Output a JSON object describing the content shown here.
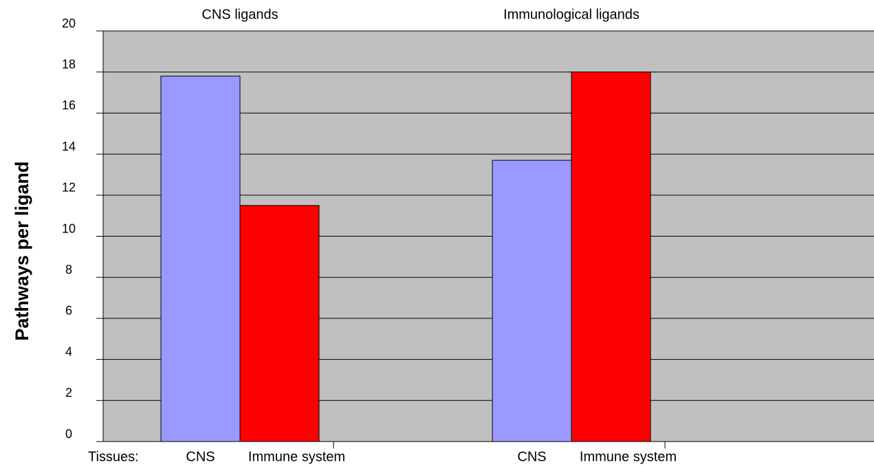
{
  "chart_data": {
    "type": "bar",
    "ylabel": "Pathways per ligand",
    "xlabel": "Tissues:",
    "groups": [
      "CNS ligands",
      "Immunological ligands"
    ],
    "series": [
      {
        "name": "CNS",
        "color": "#9999ff",
        "values": [
          17.8,
          13.7
        ]
      },
      {
        "name": "Immune system",
        "color": "#ff0000",
        "values": [
          11.5,
          18
        ]
      }
    ],
    "ylim": [
      0,
      20
    ],
    "yticks": [
      0,
      2,
      4,
      6,
      8,
      10,
      12,
      14,
      16,
      18,
      20
    ],
    "grid": true,
    "background": "#c0c0c0"
  }
}
